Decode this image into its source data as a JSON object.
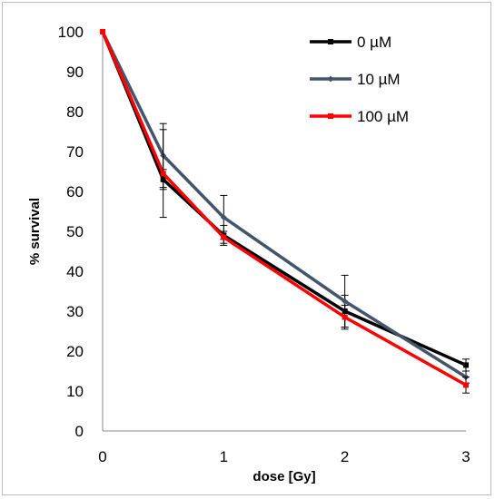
{
  "chart_data": {
    "type": "line",
    "title": "",
    "xlabel": "dose [Gy]",
    "ylabel": "% survival",
    "x": [
      0,
      0.5,
      1,
      2,
      3
    ],
    "x_ticks": [
      "0",
      "1",
      "2",
      "3"
    ],
    "y_ticks": [
      "0",
      "10",
      "20",
      "30",
      "40",
      "50",
      "60",
      "70",
      "80",
      "90",
      "100"
    ],
    "xlim": [
      0,
      3
    ],
    "ylim": [
      0,
      100
    ],
    "grid": false,
    "legend_position": "top-right",
    "series": [
      {
        "name": "0 µM",
        "color": "#000000",
        "marker": "square",
        "values": [
          100,
          63,
          49,
          30,
          16.5
        ],
        "errors": [
          0,
          2.5,
          2.5,
          4,
          1.5
        ]
      },
      {
        "name": "10 µM",
        "color": "#44546a",
        "marker": "diamond",
        "values": [
          100,
          69,
          53.5,
          32.5,
          13.5
        ],
        "errors": [
          0,
          8,
          5.5,
          6.5,
          1.5
        ]
      },
      {
        "name": "100 µM",
        "color": "#ff0000",
        "marker": "square",
        "values": [
          100,
          64.5,
          48.5,
          28.5,
          11.5
        ],
        "errors": [
          0,
          11,
          1.5,
          3,
          2
        ]
      }
    ]
  }
}
